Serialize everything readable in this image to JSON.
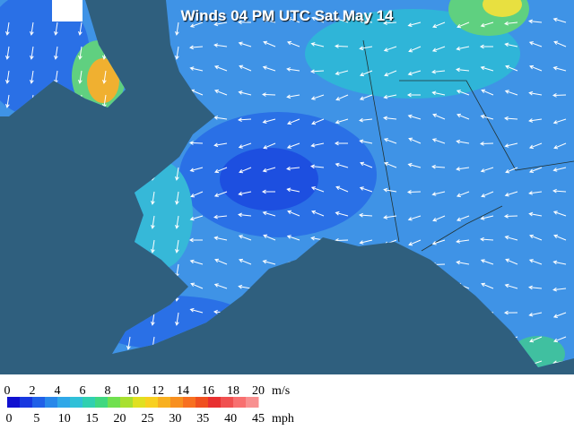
{
  "title": "Winds 04 PM UTC Sat May 14",
  "legend": {
    "ms_labels": [
      0,
      2,
      4,
      6,
      8,
      10,
      12,
      14,
      16,
      18,
      20
    ],
    "ms_unit": "m/s",
    "mph_labels": [
      0,
      5,
      10,
      15,
      20,
      25,
      30,
      35,
      40,
      45
    ],
    "mph_unit": "mph"
  }
}
